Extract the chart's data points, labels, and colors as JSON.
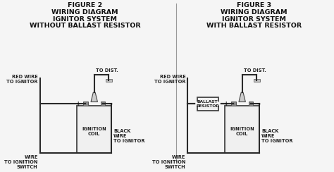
{
  "fig2_title": [
    "FIGURE 2",
    "WIRING DIAGRAM",
    "IGNITOR SYSTEM",
    "WITHOUT BALLAST RESISTOR"
  ],
  "fig3_title": [
    "FIGURE 3",
    "WIRING DIAGRAM",
    "IGNITOR SYSTEM",
    "WITH BALLAST RESISTOR"
  ],
  "title_fontsize": 6.8,
  "label_fontsize": 4.8,
  "line_color": "#2a2a2a",
  "box_fill": "#f0f0f0",
  "box_edge": "#444444",
  "terminal_fill": "#888888",
  "wire_fill": "#cccccc",
  "bg_color": "#f5f5f5"
}
